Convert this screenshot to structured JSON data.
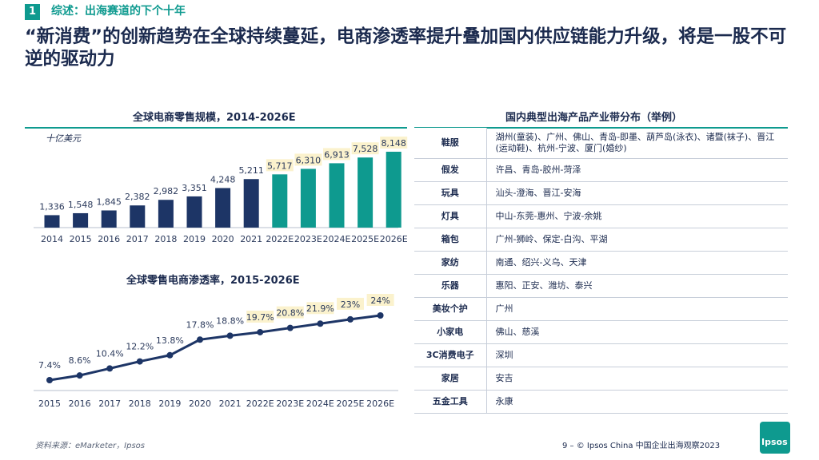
{
  "section": {
    "number": "1",
    "label": "综述：出海赛道的下个十年"
  },
  "headline": "“新消费”的创新趋势在全球持续蔓延，电商渗透率提升叠加国内供应链能力升级，将是一股不可逆的驱动力",
  "colors": {
    "dark": "#1d3566",
    "teal": "#0e9a8f",
    "label_bg": "#fbf2cd"
  },
  "chart_data": [
    {
      "type": "bar",
      "title": "全球电商零售规模，2014-2026E",
      "unit_label": "十亿美元",
      "categories": [
        "2014",
        "2015",
        "2016",
        "2017",
        "2018",
        "2019",
        "2020",
        "2021",
        "2022E",
        "2023E",
        "2024E",
        "2025E",
        "2026E"
      ],
      "values": [
        1336,
        1548,
        1845,
        2382,
        2982,
        3351,
        4248,
        5211,
        5717,
        6310,
        6913,
        7528,
        8148
      ],
      "value_labels": [
        "1,336",
        "1,548",
        "1,845",
        "2,382",
        "2,982",
        "3,351",
        "4,248",
        "5,211",
        "5,717",
        "6,310",
        "6,913",
        "7,528",
        "8,148"
      ],
      "projected_from_index": 8,
      "ylim": [
        0,
        8148
      ]
    },
    {
      "type": "line",
      "title": "全球零售电商渗透率，2015-2026E",
      "categories": [
        "2015",
        "2016",
        "2017",
        "2018",
        "2019",
        "2020",
        "2021",
        "2022E",
        "2023E",
        "2024E",
        "2025E",
        "2026E"
      ],
      "values": [
        7.4,
        8.6,
        10.4,
        12.2,
        13.8,
        17.8,
        18.8,
        19.7,
        20.8,
        21.9,
        23,
        24
      ],
      "value_labels": [
        "7.4%",
        "8.6%",
        "10.4%",
        "12.2%",
        "13.8%",
        "17.8%",
        "18.8%",
        "19.7%",
        "20.8%",
        "21.9%",
        "23%",
        "24%"
      ],
      "projected_from_index": 7,
      "ylim": [
        7.4,
        24
      ]
    }
  ],
  "hubs": {
    "title": "国内典型出海产品产业带分布（举例）",
    "rows": [
      {
        "category": "鞋服",
        "cities": "湖州(童装)、广州、佛山、青岛-即墨、葫芦岛(泳衣)、诸暨(袜子)、晋江(运动鞋)、杭州-宁波、厦门(婚纱)"
      },
      {
        "category": "假发",
        "cities": "许昌、青岛-胶州-菏泽"
      },
      {
        "category": "玩具",
        "cities": "汕头-澄海、晋江-安海"
      },
      {
        "category": "灯具",
        "cities": "中山-东莞-惠州、宁波-余姚"
      },
      {
        "category": "箱包",
        "cities": "广州-狮岭、保定-白沟、平湖"
      },
      {
        "category": "家纺",
        "cities": "南通、绍兴-义乌、天津"
      },
      {
        "category": "乐器",
        "cities": "惠阳、正安、潍坊、泰兴"
      },
      {
        "category": "美妆个护",
        "cities": "广州"
      },
      {
        "category": "小家电",
        "cities": "佛山、慈溪"
      },
      {
        "category": "3C消费电子",
        "cities": "深圳"
      },
      {
        "category": "家居",
        "cities": "安吉"
      },
      {
        "category": "五金工具",
        "cities": "永康"
      }
    ]
  },
  "source": "资料来源：eMarketer，Ipsos",
  "footer": "9 – © Ipsos China 中国企业出海观察2023",
  "logo_text": "Ipsos"
}
